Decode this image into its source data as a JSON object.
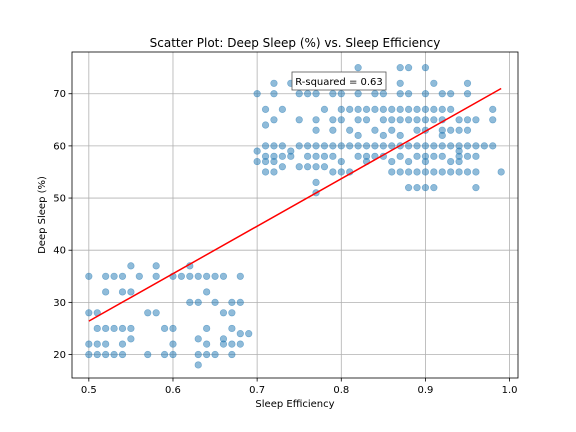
{
  "chart_data": {
    "type": "scatter",
    "title": "Scatter Plot: Deep Sleep (%) vs. Sleep Efficiency",
    "xlabel": "Sleep Efficiency",
    "ylabel": "Deep Sleep (%)",
    "xlim": [
      0.48,
      1.01
    ],
    "ylim": [
      15.5,
      78
    ],
    "xticks": [
      0.5,
      0.6,
      0.7,
      0.8,
      0.9,
      1.0
    ],
    "xtick_labels": [
      "0.5",
      "0.6",
      "0.7",
      "0.8",
      "0.9",
      "1.0"
    ],
    "yticks": [
      20,
      30,
      40,
      50,
      60,
      70
    ],
    "ytick_labels": [
      "20",
      "30",
      "40",
      "50",
      "60",
      "70"
    ],
    "grid": true,
    "annotation": "R-squared = 0.63",
    "point_color": "#1f77b4",
    "line_color": "#ff0000",
    "regression_line": {
      "x": [
        0.5,
        0.99
      ],
      "y": [
        26.4,
        71.0
      ]
    },
    "points": [
      [
        0.5,
        35
      ],
      [
        0.5,
        28
      ],
      [
        0.5,
        22
      ],
      [
        0.5,
        20
      ],
      [
        0.51,
        28
      ],
      [
        0.51,
        25
      ],
      [
        0.51,
        22
      ],
      [
        0.51,
        20
      ],
      [
        0.52,
        35
      ],
      [
        0.52,
        32
      ],
      [
        0.52,
        25
      ],
      [
        0.52,
        22
      ],
      [
        0.52,
        20
      ],
      [
        0.53,
        35
      ],
      [
        0.53,
        25
      ],
      [
        0.53,
        20
      ],
      [
        0.54,
        35
      ],
      [
        0.54,
        32
      ],
      [
        0.54,
        25
      ],
      [
        0.54,
        22
      ],
      [
        0.54,
        20
      ],
      [
        0.55,
        37
      ],
      [
        0.55,
        32
      ],
      [
        0.55,
        25
      ],
      [
        0.55,
        23
      ],
      [
        0.56,
        35
      ],
      [
        0.57,
        28
      ],
      [
        0.57,
        20
      ],
      [
        0.58,
        37
      ],
      [
        0.58,
        35
      ],
      [
        0.58,
        28
      ],
      [
        0.59,
        25
      ],
      [
        0.59,
        20
      ],
      [
        0.6,
        35
      ],
      [
        0.6,
        25
      ],
      [
        0.6,
        22
      ],
      [
        0.6,
        20
      ],
      [
        0.61,
        35
      ],
      [
        0.62,
        37
      ],
      [
        0.62,
        35
      ],
      [
        0.62,
        30
      ],
      [
        0.63,
        35
      ],
      [
        0.63,
        30
      ],
      [
        0.63,
        23
      ],
      [
        0.63,
        20
      ],
      [
        0.63,
        18
      ],
      [
        0.64,
        35
      ],
      [
        0.64,
        32
      ],
      [
        0.64,
        25
      ],
      [
        0.64,
        22
      ],
      [
        0.64,
        20
      ],
      [
        0.65,
        35
      ],
      [
        0.65,
        30
      ],
      [
        0.65,
        20
      ],
      [
        0.66,
        35
      ],
      [
        0.66,
        28
      ],
      [
        0.66,
        23
      ],
      [
        0.66,
        22
      ],
      [
        0.67,
        30
      ],
      [
        0.67,
        28
      ],
      [
        0.67,
        25
      ],
      [
        0.67,
        22
      ],
      [
        0.67,
        20
      ],
      [
        0.68,
        35
      ],
      [
        0.68,
        30
      ],
      [
        0.68,
        24
      ],
      [
        0.68,
        22
      ],
      [
        0.69,
        24
      ],
      [
        0.7,
        70
      ],
      [
        0.7,
        59
      ],
      [
        0.7,
        57
      ],
      [
        0.71,
        67
      ],
      [
        0.71,
        64
      ],
      [
        0.71,
        60
      ],
      [
        0.71,
        58
      ],
      [
        0.71,
        57
      ],
      [
        0.71,
        55
      ],
      [
        0.72,
        72
      ],
      [
        0.72,
        70
      ],
      [
        0.72,
        65
      ],
      [
        0.72,
        60
      ],
      [
        0.72,
        58
      ],
      [
        0.72,
        57
      ],
      [
        0.72,
        55
      ],
      [
        0.73,
        67
      ],
      [
        0.73,
        60
      ],
      [
        0.73,
        58
      ],
      [
        0.73,
        56
      ],
      [
        0.74,
        72
      ],
      [
        0.74,
        59
      ],
      [
        0.74,
        58
      ],
      [
        0.75,
        70
      ],
      [
        0.75,
        65
      ],
      [
        0.75,
        60
      ],
      [
        0.75,
        56
      ],
      [
        0.76,
        72
      ],
      [
        0.76,
        70
      ],
      [
        0.76,
        60
      ],
      [
        0.76,
        58
      ],
      [
        0.76,
        56
      ],
      [
        0.77,
        70
      ],
      [
        0.77,
        65
      ],
      [
        0.77,
        63
      ],
      [
        0.77,
        60
      ],
      [
        0.77,
        58
      ],
      [
        0.77,
        56
      ],
      [
        0.77,
        53
      ],
      [
        0.77,
        51
      ],
      [
        0.78,
        67
      ],
      [
        0.78,
        60
      ],
      [
        0.78,
        58
      ],
      [
        0.78,
        56
      ],
      [
        0.79,
        70
      ],
      [
        0.79,
        65
      ],
      [
        0.79,
        63
      ],
      [
        0.79,
        60
      ],
      [
        0.79,
        58
      ],
      [
        0.79,
        55
      ],
      [
        0.8,
        70
      ],
      [
        0.8,
        67
      ],
      [
        0.8,
        65
      ],
      [
        0.8,
        60
      ],
      [
        0.8,
        57
      ],
      [
        0.8,
        55
      ],
      [
        0.81,
        67
      ],
      [
        0.81,
        63
      ],
      [
        0.81,
        60
      ],
      [
        0.81,
        55
      ],
      [
        0.82,
        75
      ],
      [
        0.82,
        70
      ],
      [
        0.82,
        67
      ],
      [
        0.82,
        65
      ],
      [
        0.82,
        62
      ],
      [
        0.82,
        60
      ],
      [
        0.82,
        58
      ],
      [
        0.83,
        67
      ],
      [
        0.83,
        65
      ],
      [
        0.83,
        60
      ],
      [
        0.83,
        58
      ],
      [
        0.83,
        57
      ],
      [
        0.84,
        70
      ],
      [
        0.84,
        67
      ],
      [
        0.84,
        63
      ],
      [
        0.84,
        60
      ],
      [
        0.84,
        58
      ],
      [
        0.85,
        70
      ],
      [
        0.85,
        67
      ],
      [
        0.85,
        65
      ],
      [
        0.85,
        62
      ],
      [
        0.85,
        60
      ],
      [
        0.85,
        58
      ],
      [
        0.86,
        67
      ],
      [
        0.86,
        65
      ],
      [
        0.86,
        63
      ],
      [
        0.86,
        60
      ],
      [
        0.86,
        57
      ],
      [
        0.86,
        55
      ],
      [
        0.87,
        75
      ],
      [
        0.87,
        72
      ],
      [
        0.87,
        70
      ],
      [
        0.87,
        67
      ],
      [
        0.87,
        65
      ],
      [
        0.87,
        62
      ],
      [
        0.87,
        60
      ],
      [
        0.87,
        58
      ],
      [
        0.87,
        55
      ],
      [
        0.88,
        75
      ],
      [
        0.88,
        70
      ],
      [
        0.88,
        67
      ],
      [
        0.88,
        65
      ],
      [
        0.88,
        60
      ],
      [
        0.88,
        57
      ],
      [
        0.88,
        55
      ],
      [
        0.88,
        52
      ],
      [
        0.89,
        67
      ],
      [
        0.89,
        65
      ],
      [
        0.89,
        63
      ],
      [
        0.89,
        60
      ],
      [
        0.89,
        58
      ],
      [
        0.89,
        55
      ],
      [
        0.89,
        52
      ],
      [
        0.9,
        75
      ],
      [
        0.9,
        70
      ],
      [
        0.9,
        67
      ],
      [
        0.9,
        65
      ],
      [
        0.9,
        63
      ],
      [
        0.9,
        60
      ],
      [
        0.9,
        58
      ],
      [
        0.9,
        57
      ],
      [
        0.9,
        55
      ],
      [
        0.9,
        52
      ],
      [
        0.91,
        72
      ],
      [
        0.91,
        67
      ],
      [
        0.91,
        65
      ],
      [
        0.91,
        60
      ],
      [
        0.91,
        58
      ],
      [
        0.91,
        55
      ],
      [
        0.91,
        52
      ],
      [
        0.92,
        70
      ],
      [
        0.92,
        67
      ],
      [
        0.92,
        65
      ],
      [
        0.92,
        63
      ],
      [
        0.92,
        62
      ],
      [
        0.92,
        60
      ],
      [
        0.92,
        58
      ],
      [
        0.92,
        55
      ],
      [
        0.93,
        70
      ],
      [
        0.93,
        67
      ],
      [
        0.93,
        63
      ],
      [
        0.93,
        60
      ],
      [
        0.93,
        57
      ],
      [
        0.93,
        55
      ],
      [
        0.94,
        65
      ],
      [
        0.94,
        63
      ],
      [
        0.94,
        60
      ],
      [
        0.94,
        59
      ],
      [
        0.94,
        58
      ],
      [
        0.94,
        57
      ],
      [
        0.94,
        55
      ],
      [
        0.95,
        72
      ],
      [
        0.95,
        70
      ],
      [
        0.95,
        65
      ],
      [
        0.95,
        63
      ],
      [
        0.95,
        60
      ],
      [
        0.95,
        58
      ],
      [
        0.95,
        55
      ],
      [
        0.96,
        65
      ],
      [
        0.96,
        60
      ],
      [
        0.96,
        58
      ],
      [
        0.96,
        55
      ],
      [
        0.96,
        52
      ],
      [
        0.97,
        60
      ],
      [
        0.98,
        67
      ],
      [
        0.98,
        65
      ],
      [
        0.98,
        60
      ],
      [
        0.99,
        55
      ]
    ]
  }
}
